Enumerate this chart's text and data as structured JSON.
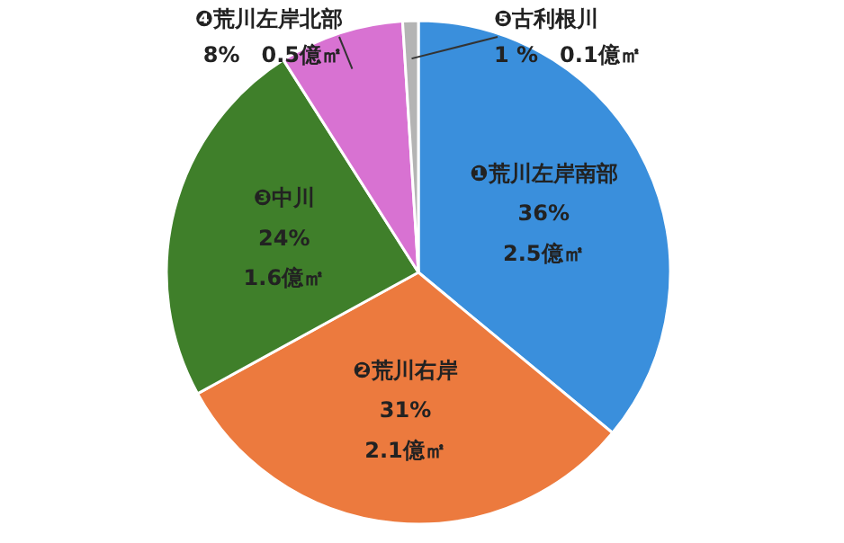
{
  "chart_data": {
    "type": "pie",
    "categories": [
      "❶荒川左岸南部",
      "❷荒川右岸",
      "❸中川",
      "❹荒川左岸北部",
      "❺古利根川"
    ],
    "values": [
      36,
      31,
      24,
      8,
      1
    ],
    "colors": [
      "#3a8fdc",
      "#ec7a3e",
      "#3f7f2a",
      "#d872d2",
      "#b4b4b4"
    ],
    "value_labels": [
      "36%　2.5億㎡",
      "31%　2.1億㎡",
      "24%　1.6億㎡",
      "8%　0.5億㎡",
      "1 %　0.1億㎡"
    ]
  }
}
